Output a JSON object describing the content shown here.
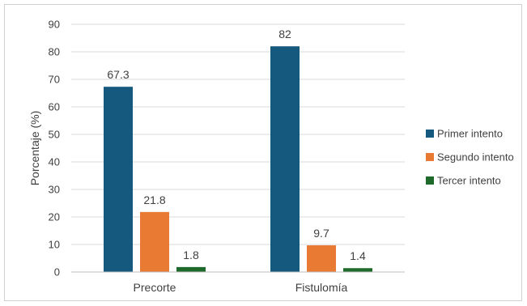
{
  "chart_data": {
    "type": "bar",
    "title": "",
    "xlabel": "",
    "ylabel": "Porcentaje (%)",
    "ylim": [
      0,
      90
    ],
    "yticks": [
      0,
      10,
      20,
      30,
      40,
      50,
      60,
      70,
      80,
      90
    ],
    "grid": "horizontal",
    "legend_position": "right",
    "categories": [
      "Precorte",
      "Fistulomía"
    ],
    "series": [
      {
        "name": "Primer intento",
        "color": "#16597e",
        "values": [
          67.3,
          82
        ]
      },
      {
        "name": "Segundo intento",
        "color": "#e97a34",
        "values": [
          21.8,
          9.7
        ]
      },
      {
        "name": "Tercer intento",
        "color": "#1e6a2a",
        "values": [
          1.8,
          1.4
        ]
      }
    ]
  }
}
